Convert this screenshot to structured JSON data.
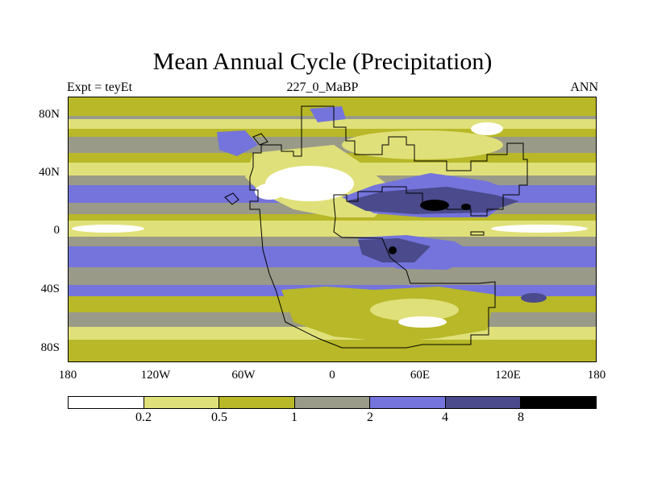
{
  "title": "Mean Annual Cycle (Precipitation)",
  "subtitle_left": "Expt = teyEt",
  "subtitle_center": "227_0_MaBP",
  "subtitle_right": "ANN",
  "y_ticks": [
    "80N",
    "40N",
    "0",
    "40S",
    "80S"
  ],
  "x_ticks": [
    "180",
    "120W",
    "60W",
    "0",
    "60E",
    "120E",
    "180"
  ],
  "colorbar": {
    "labels": [
      "0.2",
      "0.5",
      "1",
      "2",
      "4",
      "8"
    ],
    "colors": [
      "#ffffff",
      "#e0e07a",
      "#b8b828",
      "#9a9a88",
      "#7474dc",
      "#4a4a8c",
      "#000000"
    ]
  }
}
